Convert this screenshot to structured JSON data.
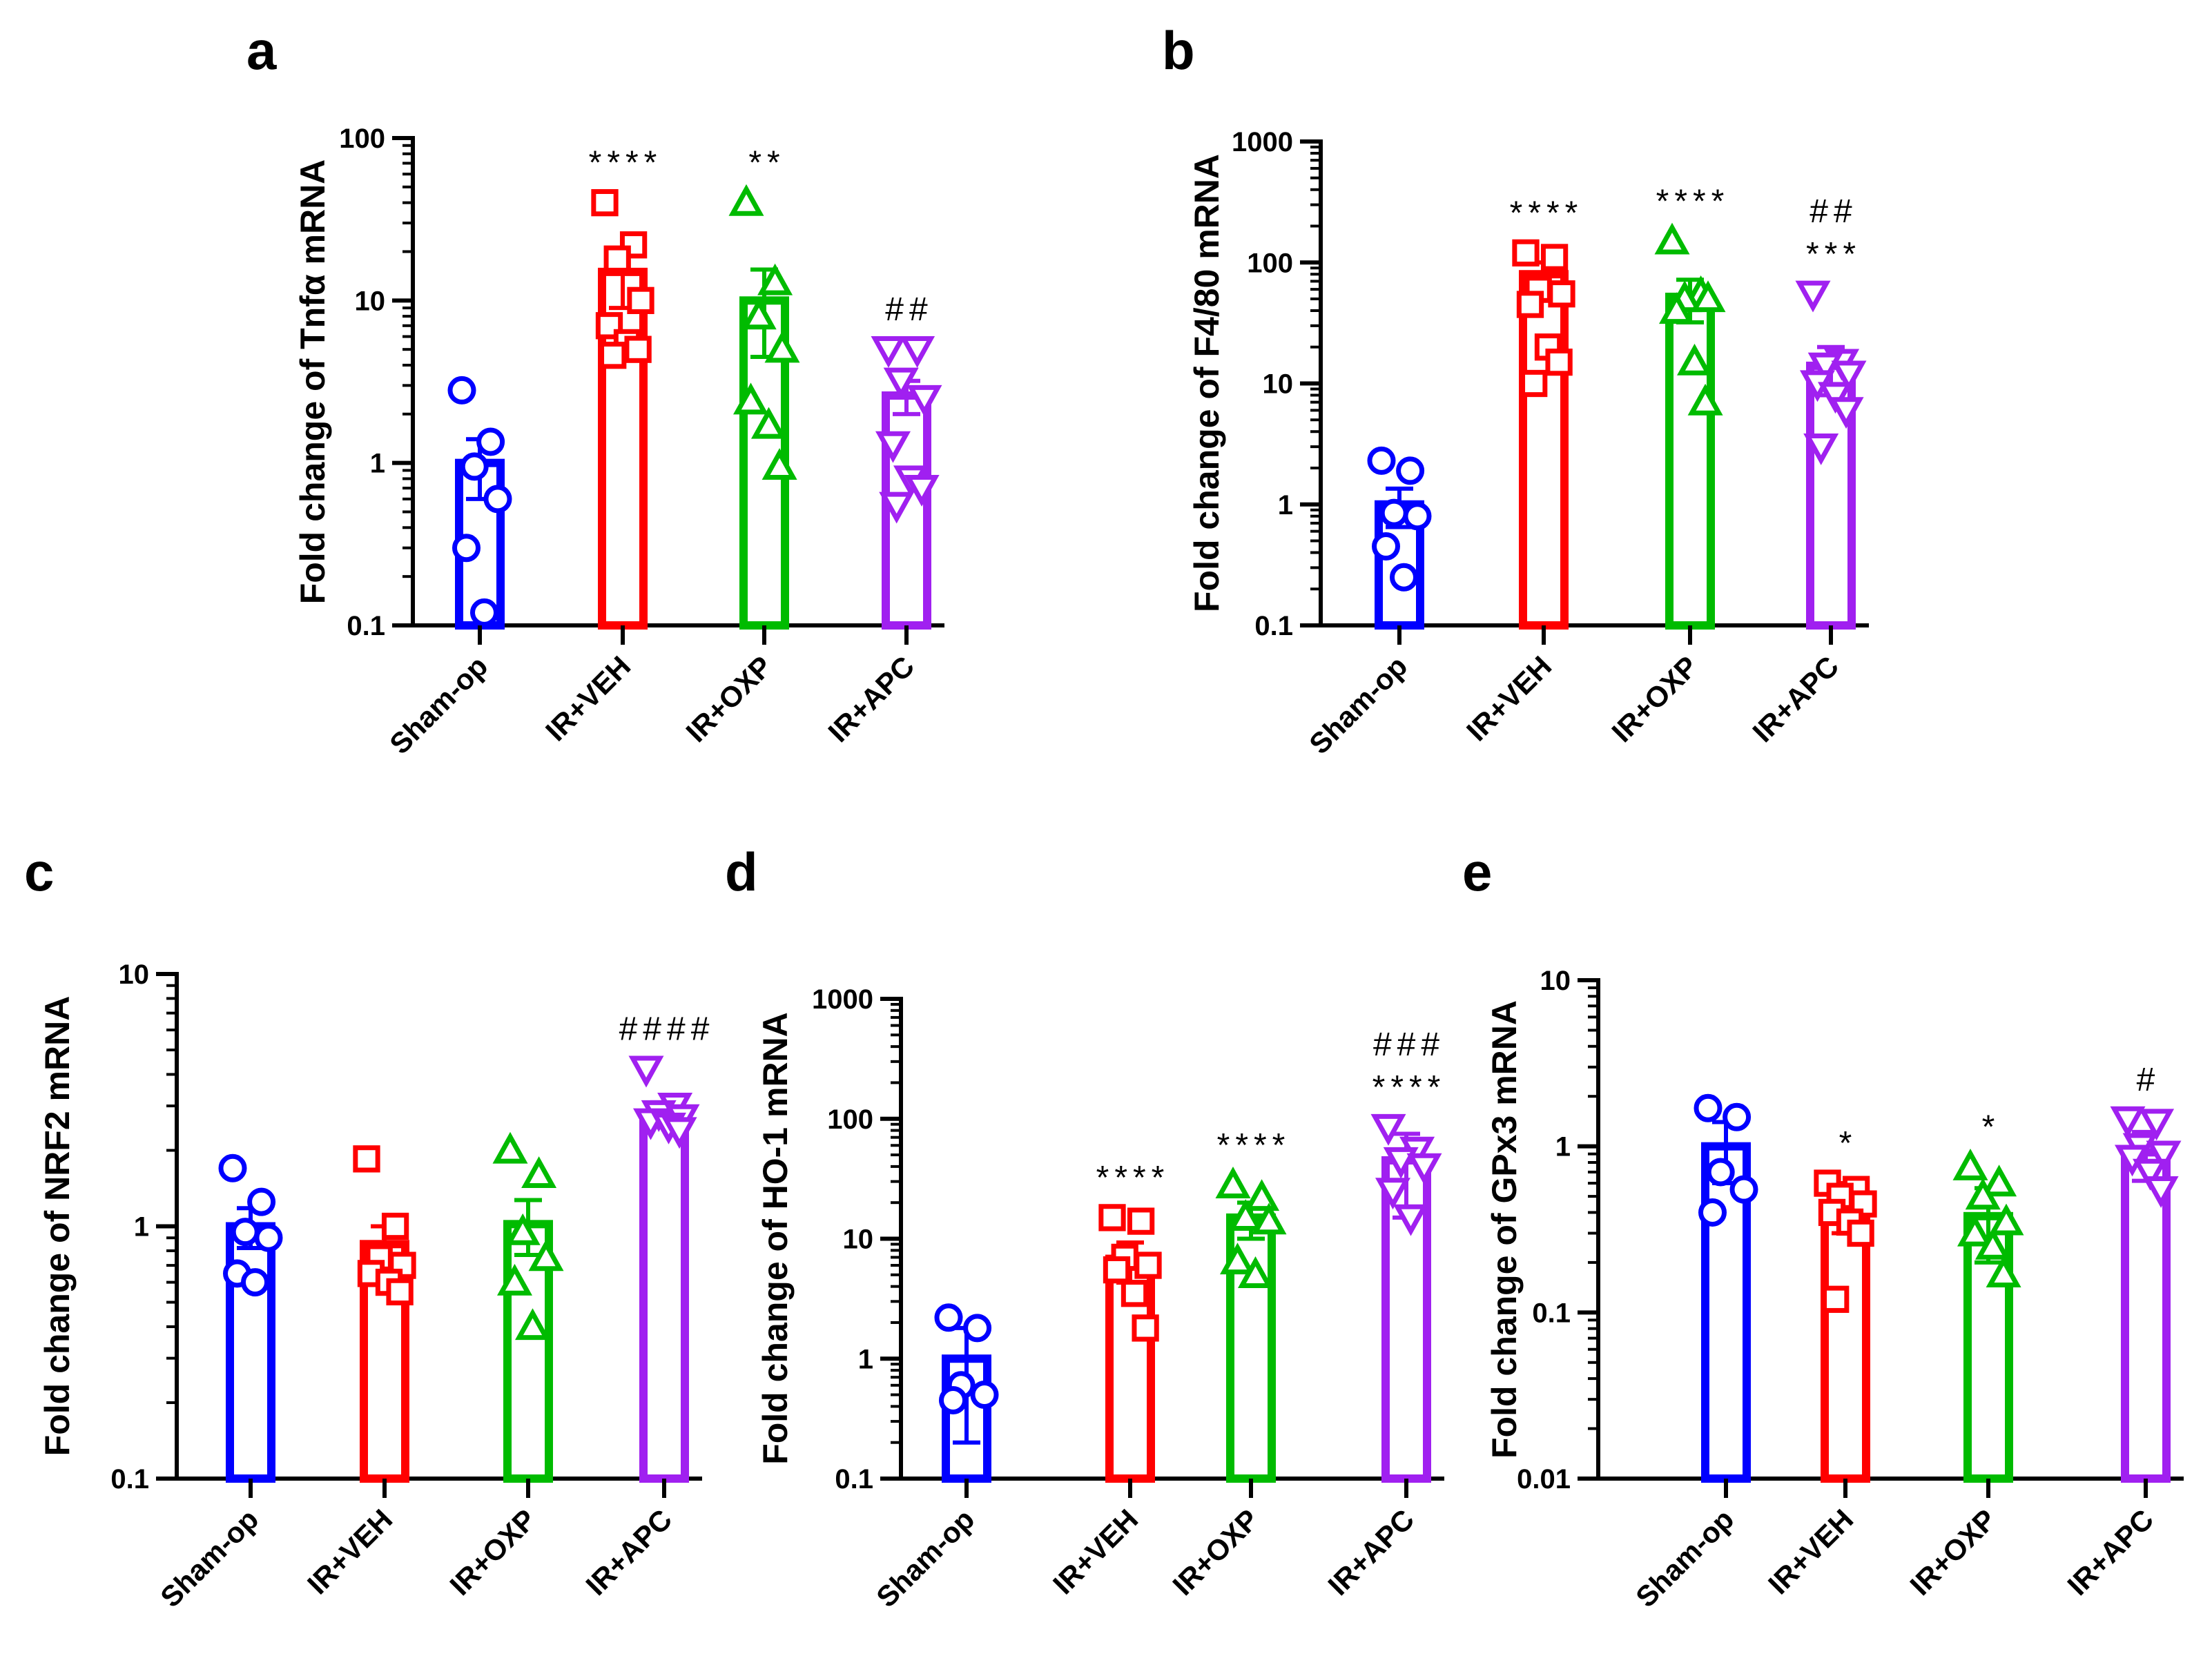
{
  "chart_data": [
    {
      "id": "a",
      "type": "bar",
      "panel_letter": "a",
      "ylabel": "Fold change of Tnfα mRNA",
      "yscale": "log",
      "ylim": [
        0.1,
        100
      ],
      "yticks": [
        "0.1",
        "1",
        "10",
        "100"
      ],
      "categories": [
        "Sham-op",
        "IR+VEH",
        "IR+OXP",
        "IR+APC"
      ],
      "values": [
        1.0,
        15,
        10,
        2.6
      ],
      "errors": [
        0.4,
        6,
        5.5,
        0.6
      ],
      "points": [
        [
          2.8,
          1.35,
          0.95,
          0.6,
          0.3,
          0.12
        ],
        [
          40,
          22,
          18,
          10,
          7,
          5.5,
          5,
          4.6
        ],
        [
          40,
          13,
          8,
          5,
          2.4,
          1.7,
          0.95
        ],
        [
          5,
          5,
          3.2,
          2.5,
          1.3,
          0.8,
          0.7,
          0.55
        ]
      ],
      "markers": [
        "circle",
        "square",
        "triangle-up",
        "triangle-down"
      ],
      "colors": [
        "#0000ff",
        "#ff0000",
        "#00bb00",
        "#a020f0"
      ],
      "significance": [
        [],
        [
          "****"
        ],
        [
          "**"
        ],
        [
          "##"
        ]
      ]
    },
    {
      "id": "b",
      "type": "bar",
      "panel_letter": "b",
      "ylabel": "Fold change of F4/80 mRNA",
      "yscale": "log",
      "ylim": [
        0.1,
        1000
      ],
      "yticks": [
        "0.1",
        "1",
        "10",
        "100",
        "1000"
      ],
      "categories": [
        "Sham-op",
        "IR+VEH",
        "IR+OXP",
        "IR+APC"
      ],
      "values": [
        1.0,
        80,
        52,
        14
      ],
      "errors": [
        0.35,
        20,
        20,
        6
      ],
      "points": [
        [
          2.3,
          1.9,
          0.85,
          0.8,
          0.45,
          0.25
        ],
        [
          120,
          110,
          60,
          55,
          45,
          20,
          15,
          10
        ],
        [
          150,
          55,
          50,
          50,
          40,
          15,
          7
        ],
        [
          55,
          15,
          14,
          12,
          10,
          8,
          6,
          3
        ]
      ],
      "markers": [
        "circle",
        "square",
        "triangle-up",
        "triangle-down"
      ],
      "colors": [
        "#0000ff",
        "#ff0000",
        "#00bb00",
        "#a020f0"
      ],
      "significance": [
        [],
        [
          "****"
        ],
        [
          "****"
        ],
        [
          "##",
          "***"
        ]
      ]
    },
    {
      "id": "c",
      "type": "bar",
      "panel_letter": "c",
      "ylabel": "Fold change of NRF2 mRNA",
      "yscale": "log",
      "ylim": [
        0.1,
        10
      ],
      "yticks": [
        "0.1",
        "1",
        "10"
      ],
      "categories": [
        "Sham-op",
        "IR+VEH",
        "IR+OXP",
        "IR+APC"
      ],
      "values": [
        1.0,
        0.85,
        1.02,
        2.8
      ],
      "errors": [
        0.18,
        0.15,
        0.25,
        0.3
      ],
      "points": [
        [
          1.7,
          1.25,
          0.95,
          0.9,
          0.65,
          0.6
        ],
        [
          1.85,
          1.0,
          0.75,
          0.7,
          0.65,
          0.6,
          0.55
        ],
        [
          2.0,
          1.6,
          0.95,
          0.75,
          0.6,
          0.4
        ],
        [
          4.2,
          3.0,
          2.8,
          2.7,
          2.6,
          2.5,
          2.4
        ]
      ],
      "markers": [
        "circle",
        "square",
        "triangle-up",
        "triangle-down"
      ],
      "colors": [
        "#0000ff",
        "#ff0000",
        "#00bb00",
        "#a020f0"
      ],
      "significance": [
        [],
        [],
        [],
        [
          "####"
        ]
      ]
    },
    {
      "id": "d",
      "type": "bar",
      "panel_letter": "d",
      "ylabel": "Fold change of HO-1 mRNA",
      "yscale": "log",
      "ylim": [
        0.1,
        1000
      ],
      "yticks": [
        "0.1",
        "1",
        "10",
        "100",
        "1000"
      ],
      "categories": [
        "Sham-op",
        "IR+VEH",
        "IR+OXP",
        "IR+APC"
      ],
      "values": [
        1.0,
        6.8,
        15,
        45
      ],
      "errors": [
        0.8,
        2.5,
        5,
        30
      ],
      "points": [
        [
          2.2,
          1.8,
          0.6,
          0.5,
          0.45
        ],
        [
          15,
          14,
          7,
          6,
          5.5,
          3.5,
          1.8
        ],
        [
          28,
          22,
          15,
          14,
          6.5,
          5
        ],
        [
          85,
          55,
          45,
          40,
          25,
          15
        ]
      ],
      "markers": [
        "circle",
        "square",
        "triangle-up",
        "triangle-down"
      ],
      "colors": [
        "#0000ff",
        "#ff0000",
        "#00bb00",
        "#a020f0"
      ],
      "significance": [
        [],
        [
          "****"
        ],
        [
          "****"
        ],
        [
          "###",
          "****"
        ]
      ]
    },
    {
      "id": "e",
      "type": "bar",
      "panel_letter": "e",
      "ylabel": "Fold change of GPx3 mRNA",
      "yscale": "log",
      "ylim": [
        0.01,
        10
      ],
      "yticks": [
        "0.01",
        "0.1",
        "1",
        "10"
      ],
      "categories": [
        "Sham-op",
        "IR+VEH",
        "IR+OXP",
        "IR+APC"
      ],
      "values": [
        1.0,
        0.45,
        0.38,
        0.92
      ],
      "errors": [
        0.4,
        0.15,
        0.18,
        0.3
      ],
      "points": [
        [
          1.7,
          1.5,
          0.7,
          0.55,
          0.4
        ],
        [
          0.6,
          0.55,
          0.5,
          0.45,
          0.4,
          0.35,
          0.3,
          0.12
        ],
        [
          0.75,
          0.6,
          0.5,
          0.35,
          0.3,
          0.25,
          0.17
        ],
        [
          1.45,
          1.4,
          1.0,
          0.9,
          0.85,
          0.7,
          0.55
        ]
      ],
      "markers": [
        "circle",
        "square",
        "triangle-up",
        "triangle-down"
      ],
      "colors": [
        "#0000ff",
        "#ff0000",
        "#00bb00",
        "#a020f0"
      ],
      "significance": [
        [],
        [
          "*"
        ],
        [
          "*"
        ],
        [
          "#"
        ]
      ]
    }
  ]
}
